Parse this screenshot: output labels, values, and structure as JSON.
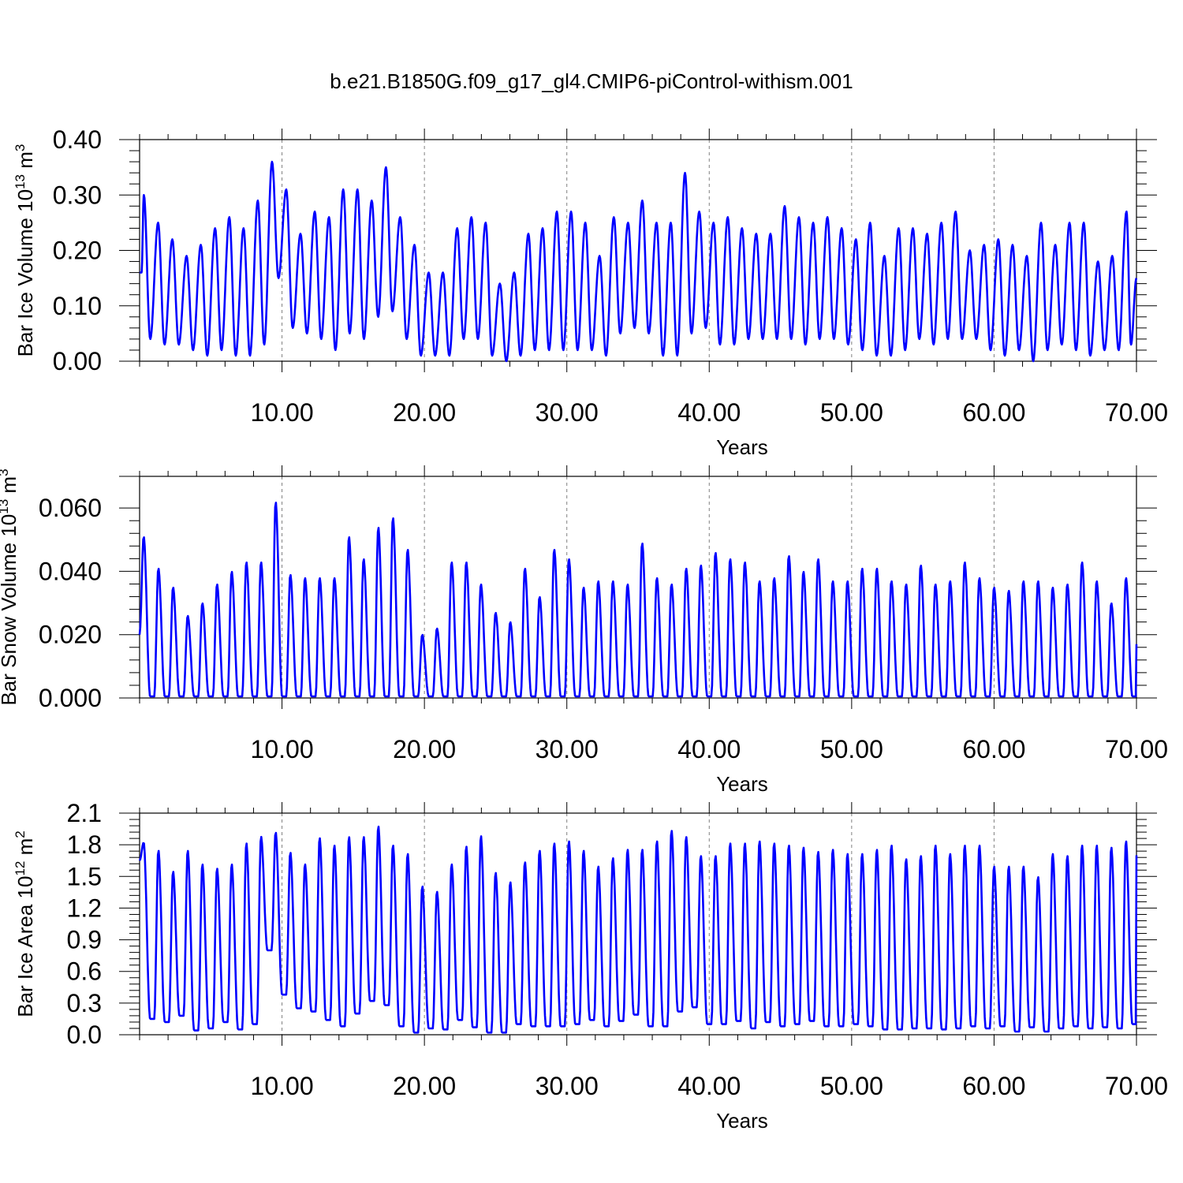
{
  "figure_title": "b.e21.B1850G.f09_g17_gl4.CMIP6-piControl-withism.001",
  "colors": {
    "series": "#0000ff",
    "axis": "#000000",
    "grid": "#808080",
    "background": "#ffffff"
  },
  "chart_data": [
    {
      "type": "line",
      "ylabel": {
        "text": "Bar Ice Volume 10",
        "exp": "13",
        "unit": " m",
        "unit_exp": "3"
      },
      "xlabel": "Years",
      "xlim": [
        0.0,
        70.0
      ],
      "ylim": [
        0.0,
        0.4
      ],
      "x_ticks": [
        "10.00",
        "20.00",
        "30.00",
        "40.00",
        "50.00",
        "60.00",
        "70.00"
      ],
      "y_ticks": [
        "0.00",
        "0.10",
        "0.20",
        "0.30",
        "0.40"
      ],
      "grid": "vertical dashed at major x ticks",
      "series": [
        {
          "x": [
            0.0,
            0.3,
            1.3,
            2.3,
            3.3,
            4.3,
            5.3,
            6.3,
            7.3,
            8.3,
            9.3,
            10.3,
            11.3,
            12.3,
            13.3,
            14.3,
            15.3,
            16.3,
            17.3,
            18.3,
            19.3,
            20.3,
            21.3,
            22.3,
            23.3,
            24.3,
            25.3,
            26.3,
            27.3,
            28.3,
            29.3,
            30.3,
            31.3,
            32.3,
            33.3,
            34.3,
            35.3,
            36.3,
            37.3,
            38.3,
            39.3,
            40.3,
            41.3,
            42.3,
            43.3,
            44.3,
            45.3,
            46.3,
            47.3,
            48.3,
            49.3,
            50.3,
            51.3,
            52.3,
            53.3,
            54.3,
            55.3,
            56.3,
            57.3,
            58.3,
            59.3,
            60.3,
            61.3,
            62.3,
            63.3,
            64.3,
            65.3,
            66.3,
            67.3,
            68.3,
            69.3,
            70.0
          ],
          "y": [
            0.16,
            0.3,
            0.25,
            0.22,
            0.19,
            0.21,
            0.24,
            0.26,
            0.24,
            0.29,
            0.36,
            0.31,
            0.23,
            0.27,
            0.26,
            0.31,
            0.31,
            0.29,
            0.35,
            0.26,
            0.21,
            0.16,
            0.16,
            0.24,
            0.26,
            0.25,
            0.14,
            0.16,
            0.23,
            0.24,
            0.27,
            0.27,
            0.25,
            0.19,
            0.26,
            0.25,
            0.29,
            0.25,
            0.25,
            0.34,
            0.27,
            0.25,
            0.26,
            0.24,
            0.23,
            0.23,
            0.28,
            0.26,
            0.25,
            0.26,
            0.24,
            0.22,
            0.25,
            0.19,
            0.24,
            0.24,
            0.23,
            0.25,
            0.27,
            0.2,
            0.21,
            0.22,
            0.21,
            0.19,
            0.25,
            0.21,
            0.25,
            0.25,
            0.18,
            0.19,
            0.27,
            0.15
          ],
          "y_min_annual": [
            0.16,
            0.04,
            0.03,
            0.03,
            0.02,
            0.01,
            0.02,
            0.01,
            0.01,
            0.03,
            0.15,
            0.06,
            0.05,
            0.04,
            0.02,
            0.05,
            0.04,
            0.08,
            0.09,
            0.04,
            0.01,
            0.01,
            0.01,
            0.04,
            0.04,
            0.01,
            0.0,
            0.01,
            0.02,
            0.02,
            0.02,
            0.02,
            0.02,
            0.01,
            0.05,
            0.06,
            0.05,
            0.01,
            0.01,
            0.05,
            0.06,
            0.03,
            0.03,
            0.04,
            0.04,
            0.04,
            0.04,
            0.03,
            0.04,
            0.04,
            0.03,
            0.02,
            0.01,
            0.01,
            0.02,
            0.04,
            0.03,
            0.04,
            0.04,
            0.04,
            0.02,
            0.01,
            0.02,
            0.0,
            0.02,
            0.03,
            0.02,
            0.01,
            0.02,
            0.02,
            0.03,
            0.15
          ]
        }
      ]
    },
    {
      "type": "line",
      "ylabel": {
        "text": "Bar Snow Volume 10",
        "exp": "13",
        "unit": " m",
        "unit_exp": "3"
      },
      "xlabel": "Years",
      "xlim": [
        0.0,
        70.0
      ],
      "ylim": [
        0.0,
        0.07
      ],
      "x_ticks": [
        "10.00",
        "20.00",
        "30.00",
        "40.00",
        "50.00",
        "60.00",
        "70.00"
      ],
      "y_ticks": [
        "0.000",
        "0.020",
        "0.040",
        "0.060"
      ],
      "grid": "vertical dashed at major x ticks",
      "series": [
        {
          "peaks": [
            0.051,
            0.041,
            0.035,
            0.026,
            0.03,
            0.036,
            0.04,
            0.043,
            0.043,
            0.062,
            0.039,
            0.038,
            0.038,
            0.038,
            0.051,
            0.044,
            0.054,
            0.057,
            0.047,
            0.02,
            0.022,
            0.043,
            0.043,
            0.036,
            0.027,
            0.024,
            0.041,
            0.032,
            0.047,
            0.044,
            0.035,
            0.037,
            0.037,
            0.036,
            0.049,
            0.038,
            0.036,
            0.041,
            0.042,
            0.046,
            0.044,
            0.043,
            0.037,
            0.038,
            0.045,
            0.04,
            0.044,
            0.037,
            0.037,
            0.041,
            0.041,
            0.037,
            0.036,
            0.042,
            0.036,
            0.037,
            0.043,
            0.038,
            0.035,
            0.034,
            0.037,
            0.037,
            0.035,
            0.036,
            0.043,
            0.037,
            0.03,
            0.038
          ],
          "start": 0.02,
          "end": 0.017
        }
      ]
    },
    {
      "type": "line",
      "ylabel": {
        "text": "Bar Ice Area 10",
        "exp": "12",
        "unit": " m",
        "unit_exp": "2"
      },
      "xlabel": "Years",
      "xlim": [
        0.0,
        70.0
      ],
      "ylim": [
        0.0,
        2.1
      ],
      "x_ticks": [
        "10.00",
        "20.00",
        "30.00",
        "40.00",
        "50.00",
        "60.00",
        "70.00"
      ],
      "y_ticks": [
        "0.0",
        "0.3",
        "0.6",
        "0.9",
        "1.2",
        "1.5",
        "1.8",
        "2.1"
      ],
      "grid": "vertical dashed at major x ticks",
      "series": [
        {
          "peaks": [
            1.82,
            1.75,
            1.55,
            1.75,
            1.62,
            1.58,
            1.62,
            1.82,
            1.88,
            1.92,
            1.73,
            1.62,
            1.87,
            1.8,
            1.88,
            1.88,
            1.98,
            1.8,
            1.72,
            1.41,
            1.36,
            1.62,
            1.79,
            1.89,
            1.54,
            1.45,
            1.64,
            1.75,
            1.82,
            1.84,
            1.75,
            1.6,
            1.68,
            1.76,
            1.76,
            1.84,
            1.94,
            1.88,
            1.7,
            1.7,
            1.82,
            1.82,
            1.84,
            1.82,
            1.8,
            1.78,
            1.74,
            1.76,
            1.72,
            1.72,
            1.76,
            1.8,
            1.67,
            1.7,
            1.8,
            1.72,
            1.8,
            1.8,
            1.6,
            1.6,
            1.6,
            1.5,
            1.72,
            1.7,
            1.8,
            1.8,
            1.78,
            1.84
          ],
          "troughs": [
            0.15,
            0.12,
            0.18,
            0.04,
            0.06,
            0.12,
            0.05,
            0.1,
            0.8,
            0.38,
            0.25,
            0.22,
            0.14,
            0.08,
            0.2,
            0.32,
            0.28,
            0.08,
            0.02,
            0.06,
            0.05,
            0.14,
            0.07,
            0.02,
            0.02,
            0.1,
            0.08,
            0.08,
            0.08,
            0.1,
            0.14,
            0.08,
            0.13,
            0.19,
            0.08,
            0.08,
            0.22,
            0.26,
            0.1,
            0.1,
            0.13,
            0.06,
            0.12,
            0.08,
            0.1,
            0.13,
            0.08,
            0.08,
            0.1,
            0.08,
            0.05,
            0.05,
            0.06,
            0.06,
            0.05,
            0.06,
            0.08,
            0.06,
            0.08,
            0.03,
            0.07,
            0.03,
            0.06,
            0.08,
            0.06,
            0.07,
            0.06,
            0.1
          ],
          "start": 1.65,
          "end": 1.7
        }
      ]
    }
  ]
}
